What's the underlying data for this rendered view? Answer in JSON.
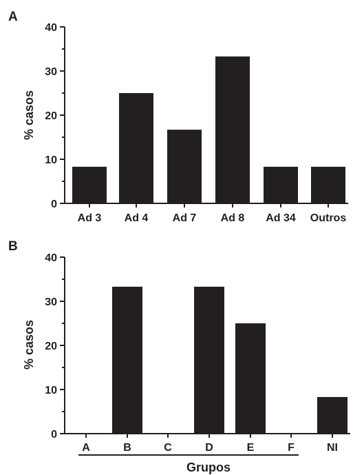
{
  "chart_data": [
    {
      "type": "bar",
      "panel_label": "A",
      "categories": [
        "Ad 3",
        "Ad 4",
        "Ad 7",
        "Ad 8",
        "Ad 34",
        "Outros"
      ],
      "values": [
        8.3,
        25.0,
        16.7,
        33.3,
        8.3,
        8.3
      ],
      "title": "",
      "xlabel": "",
      "ylabel": "% casos",
      "ylim": [
        0,
        40
      ],
      "yticks": [
        "0",
        "10",
        "20",
        "30",
        "40"
      ],
      "grid": false,
      "bar_color": "#231f20"
    },
    {
      "type": "bar",
      "panel_label": "B",
      "categories": [
        "A",
        "B",
        "C",
        "D",
        "E",
        "F",
        "NI"
      ],
      "values": [
        0,
        33.3,
        0,
        33.3,
        25.0,
        0,
        8.3
      ],
      "title": "",
      "xlabel": "Grupos",
      "ylabel": "% casos",
      "ylim": [
        0,
        40
      ],
      "yticks": [
        "0",
        "10",
        "20",
        "30",
        "40"
      ],
      "grid": false,
      "bar_color": "#231f20"
    }
  ]
}
